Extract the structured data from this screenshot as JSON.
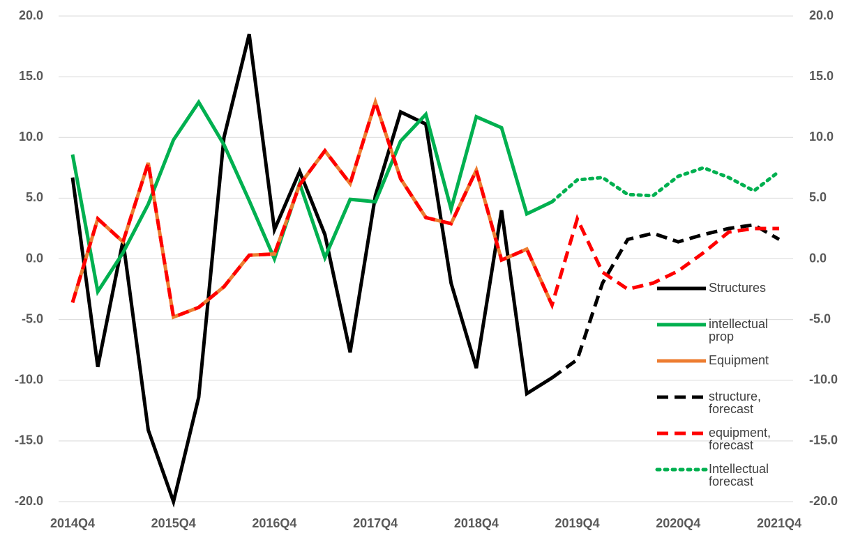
{
  "chart_data": {
    "type": "line",
    "categories": [
      "2014Q4",
      null,
      null,
      null,
      "2015Q4",
      null,
      null,
      null,
      "2016Q4",
      null,
      null,
      null,
      "2017Q4",
      null,
      null,
      null,
      "2018Q4",
      null,
      null,
      null,
      "2019Q4",
      null,
      null,
      null,
      "2020Q4",
      null,
      null,
      null,
      "2021Q4"
    ],
    "series": [
      {
        "name": "Structures",
        "color": "#000000",
        "line_style": "solid",
        "values": [
          6.7,
          -8.9,
          1.5,
          -14.1,
          -20.0,
          -11.4,
          10.0,
          18.5,
          2.4,
          7.2,
          2.0,
          -7.7,
          5.2,
          12.1,
          11.1,
          -2.0,
          -9.0,
          4.0,
          -11.1,
          -9.8,
          null,
          null,
          null,
          null,
          null,
          null,
          null,
          null,
          null
        ]
      },
      {
        "name": "intellectual prop",
        "color": "#00b050",
        "line_style": "solid",
        "values": [
          8.6,
          -2.7,
          0.5,
          4.5,
          9.8,
          12.9,
          9.4,
          4.8,
          0.0,
          6.2,
          0.1,
          4.9,
          4.7,
          9.7,
          11.9,
          4.1,
          11.7,
          10.8,
          3.7,
          4.7,
          null,
          null,
          null,
          null,
          null,
          null,
          null,
          null,
          null
        ]
      },
      {
        "name": "Equipment",
        "color": "#ed7d31",
        "line_style": "solid",
        "values": [
          -3.6,
          3.3,
          1.4,
          7.9,
          -4.8,
          -4.0,
          -2.3,
          0.3,
          0.4,
          6.1,
          8.9,
          6.2,
          12.9,
          6.6,
          3.4,
          2.9,
          7.3,
          -0.1,
          0.8,
          -3.8,
          null,
          null,
          null,
          null,
          null,
          null,
          null,
          null,
          null
        ]
      },
      {
        "name": "structure, forecast",
        "color": "#000000",
        "line_style": "dashed",
        "values": [
          null,
          null,
          null,
          null,
          null,
          null,
          null,
          null,
          null,
          null,
          null,
          null,
          null,
          null,
          null,
          null,
          null,
          null,
          null,
          -9.8,
          -8.3,
          -2.0,
          1.6,
          2.1,
          1.4,
          2.0,
          2.5,
          2.8,
          1.6
        ]
      },
      {
        "name": "equipment, forecast",
        "color": "#ff0000",
        "line_style": "dashed",
        "values": [
          -3.6,
          3.3,
          1.4,
          7.9,
          -4.8,
          -4.0,
          -2.3,
          0.3,
          0.4,
          6.1,
          8.9,
          6.2,
          12.9,
          6.6,
          3.4,
          2.9,
          7.3,
          -0.1,
          0.8,
          -3.8,
          3.3,
          -1.1,
          -2.5,
          -2.0,
          -1.0,
          0.5,
          2.2,
          2.5,
          2.5
        ]
      },
      {
        "name": "Intellectual forecast",
        "color": "#00b050",
        "line_style": "dotted",
        "values": [
          null,
          null,
          null,
          null,
          null,
          null,
          null,
          null,
          null,
          null,
          null,
          null,
          null,
          null,
          null,
          null,
          null,
          null,
          null,
          4.7,
          6.5,
          6.7,
          5.3,
          5.2,
          6.8,
          7.5,
          6.7,
          5.6,
          7.2
        ]
      }
    ],
    "ylim": [
      -20,
      20
    ],
    "yticks": [
      {
        "value": -20,
        "label": "-20.0"
      },
      {
        "value": -15,
        "label": "-15.0"
      },
      {
        "value": -10,
        "label": "-10.0"
      },
      {
        "value": -5,
        "label": "-5.0"
      },
      {
        "value": 0,
        "label": "0.0"
      },
      {
        "value": 5,
        "label": "5.0"
      },
      {
        "value": 10,
        "label": "10.0"
      },
      {
        "value": 15,
        "label": "15.0"
      },
      {
        "value": 20,
        "label": "20.0"
      }
    ],
    "y2lim": [
      -20,
      20
    ],
    "y2ticks": [
      {
        "value": -20,
        "label": "-20.0"
      },
      {
        "value": -15,
        "label": "-15.0"
      },
      {
        "value": -10,
        "label": "-10.0"
      },
      {
        "value": -5,
        "label": "-5.0"
      },
      {
        "value": 0,
        "label": "0.0"
      },
      {
        "value": 5,
        "label": "5.0"
      },
      {
        "value": 10,
        "label": "10.0"
      },
      {
        "value": 15,
        "label": "15.0"
      },
      {
        "value": 20,
        "label": "20.0"
      }
    ],
    "grid": true,
    "legend": "right"
  }
}
